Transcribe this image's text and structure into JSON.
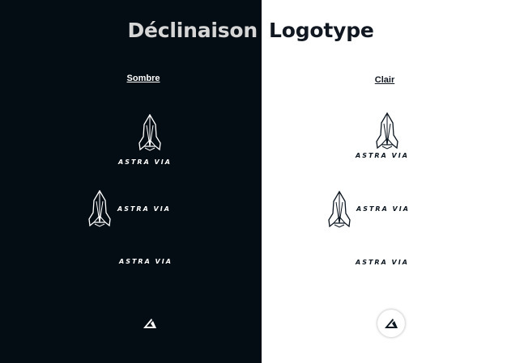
{
  "header": {
    "title_left": "Déclinaison",
    "title_right": "Logotype"
  },
  "variants": {
    "dark_label": "Sombre",
    "light_label": "Clair"
  },
  "brand": {
    "wordmark": "ASTRA VIA",
    "icon": "rocket-icon",
    "monogram_icon": "a-monogram-icon"
  },
  "colors": {
    "dark_background": "#050d14",
    "light_background": "#ffffff",
    "dark_ink": "#0c1620",
    "light_ink": "#ffffff"
  }
}
